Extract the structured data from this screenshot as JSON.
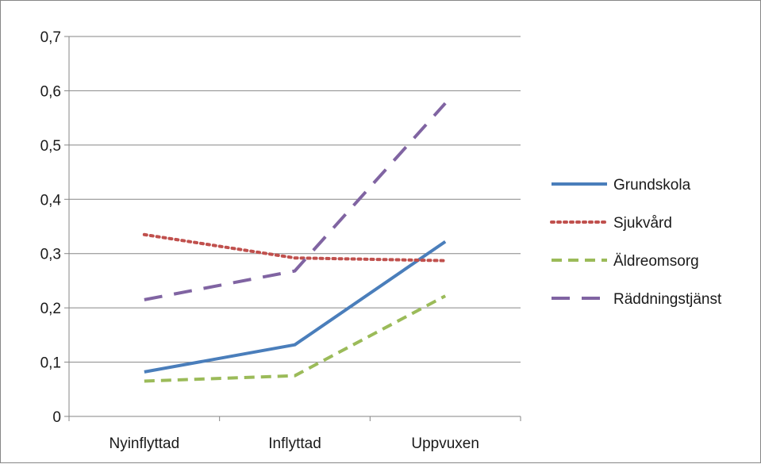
{
  "chart_data": {
    "type": "line",
    "categories": [
      "Nyinflyttad",
      "Inflyttad",
      "Uppvuxen"
    ],
    "ylim": [
      0,
      0.7
    ],
    "yticks": [
      0,
      0.1,
      0.2,
      0.3,
      0.4,
      0.5,
      0.6,
      0.7
    ],
    "ytick_labels": [
      "0",
      "0,1",
      "0,2",
      "0,3",
      "0,4",
      "0,5",
      "0,6",
      "0,7"
    ],
    "grid": true,
    "legend_position": "right",
    "series": [
      {
        "name": "Grundskola",
        "values": [
          0.082,
          0.132,
          0.322
        ],
        "color": "#4a7ebb",
        "dash": "solid"
      },
      {
        "name": "Sjukvård",
        "values": [
          0.335,
          0.292,
          0.287
        ],
        "color": "#c0504d",
        "dash": "dot"
      },
      {
        "name": "Äldreomsorg",
        "values": [
          0.065,
          0.075,
          0.222
        ],
        "color": "#9bbb59",
        "dash": "dash"
      },
      {
        "name": "Räddningstjänst",
        "values": [
          0.215,
          0.268,
          0.577
        ],
        "color": "#8064a2",
        "dash": "longdash"
      }
    ]
  }
}
